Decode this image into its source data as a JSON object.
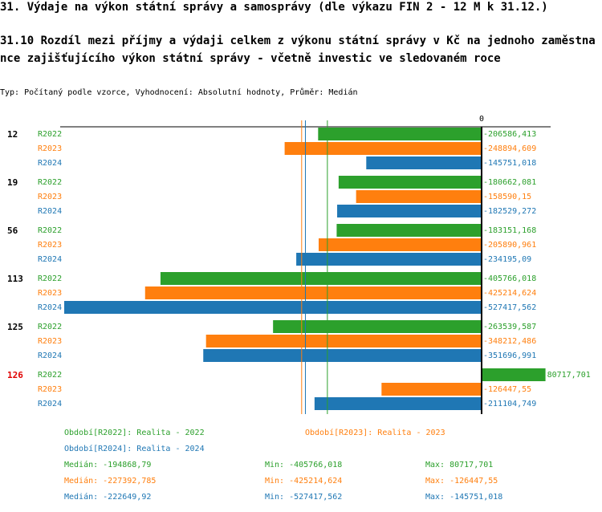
{
  "title": "31. Výdaje na výkon státní správy a samosprávy (dle výkazu FIN 2 - 12 M k 31.12.)",
  "subtitle": "31.10 Rozdíl mezi  příjmy a výdaji celkem z výkonu státní správy v Kč na jednoho zaměstnance zajišťujícího výkon státní správy - včetně investic ve sledovaném roce",
  "type_line": "Typ: Počítaný podle vzorce, Vyhodnocení: Absolutní hodnoty, Průměr: Medián",
  "colors": {
    "R2022": "#2ca02c",
    "R2023": "#ff7f0e",
    "R2024": "#1f77b4"
  },
  "chart_data": {
    "type": "bar",
    "orientation": "horizontal",
    "zero_label": "0",
    "xlim": [
      -527417.562,
      80717.701
    ],
    "groups": [
      {
        "label": "12",
        "highlight": false
      },
      {
        "label": "19",
        "highlight": false
      },
      {
        "label": "56",
        "highlight": false
      },
      {
        "label": "113",
        "highlight": false
      },
      {
        "label": "125",
        "highlight": false
      },
      {
        "label": "126",
        "highlight": true
      }
    ],
    "series": [
      {
        "name": "R2022",
        "values": [
          -206586.413,
          -180662.081,
          -183151.168,
          -405766.018,
          -263539.587,
          80717.701
        ],
        "labels": [
          "-206586,413",
          "-180662,081",
          "-183151,168",
          "-405766,018",
          "-263539,587",
          "80717,701"
        ]
      },
      {
        "name": "R2023",
        "values": [
          -248894.609,
          -158590.15,
          -205890.961,
          -425214.624,
          -348212.486,
          -126447.55
        ],
        "labels": [
          "-248894,609",
          "-158590,15",
          "-205890,961",
          "-425214,624",
          "-348212,486",
          "-126447,55"
        ]
      },
      {
        "name": "R2024",
        "values": [
          -145751.018,
          -182529.272,
          -234195.09,
          -527417.562,
          -351696.991,
          -211104.749
        ],
        "labels": [
          "-145751,018",
          "-182529,272",
          "-234195,09",
          "-527417,562",
          "-351696,991",
          "-211104,749"
        ]
      }
    ],
    "medians": [
      -194868.79,
      -227392.785,
      -222649.92
    ]
  },
  "legend": {
    "periods": [
      "Období[R2022]: Realita - 2022",
      "Období[R2023]: Realita - 2023",
      "Období[R2024]: Realita - 2024"
    ],
    "stats": [
      {
        "median": "Medián: -194868,79",
        "min": "Min: -405766,018",
        "max": "Max: 80717,701"
      },
      {
        "median": "Medián: -227392,785",
        "min": "Min: -425214,624",
        "max": "Max: -126447,55"
      },
      {
        "median": "Medián: -222649,92",
        "min": "Min: -527417,562",
        "max": "Max: -145751,018"
      }
    ]
  }
}
